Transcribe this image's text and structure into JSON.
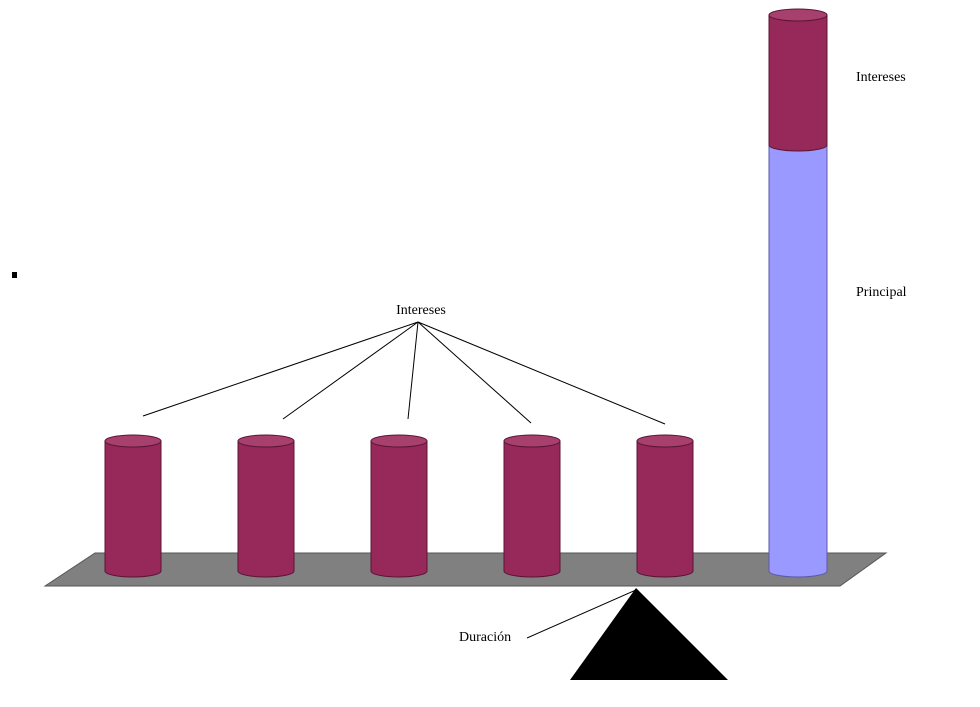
{
  "labels": {
    "interest_group": "Intereses",
    "top_interest": "Intereses",
    "principal": "Principal",
    "duration": "Duración"
  }
}
